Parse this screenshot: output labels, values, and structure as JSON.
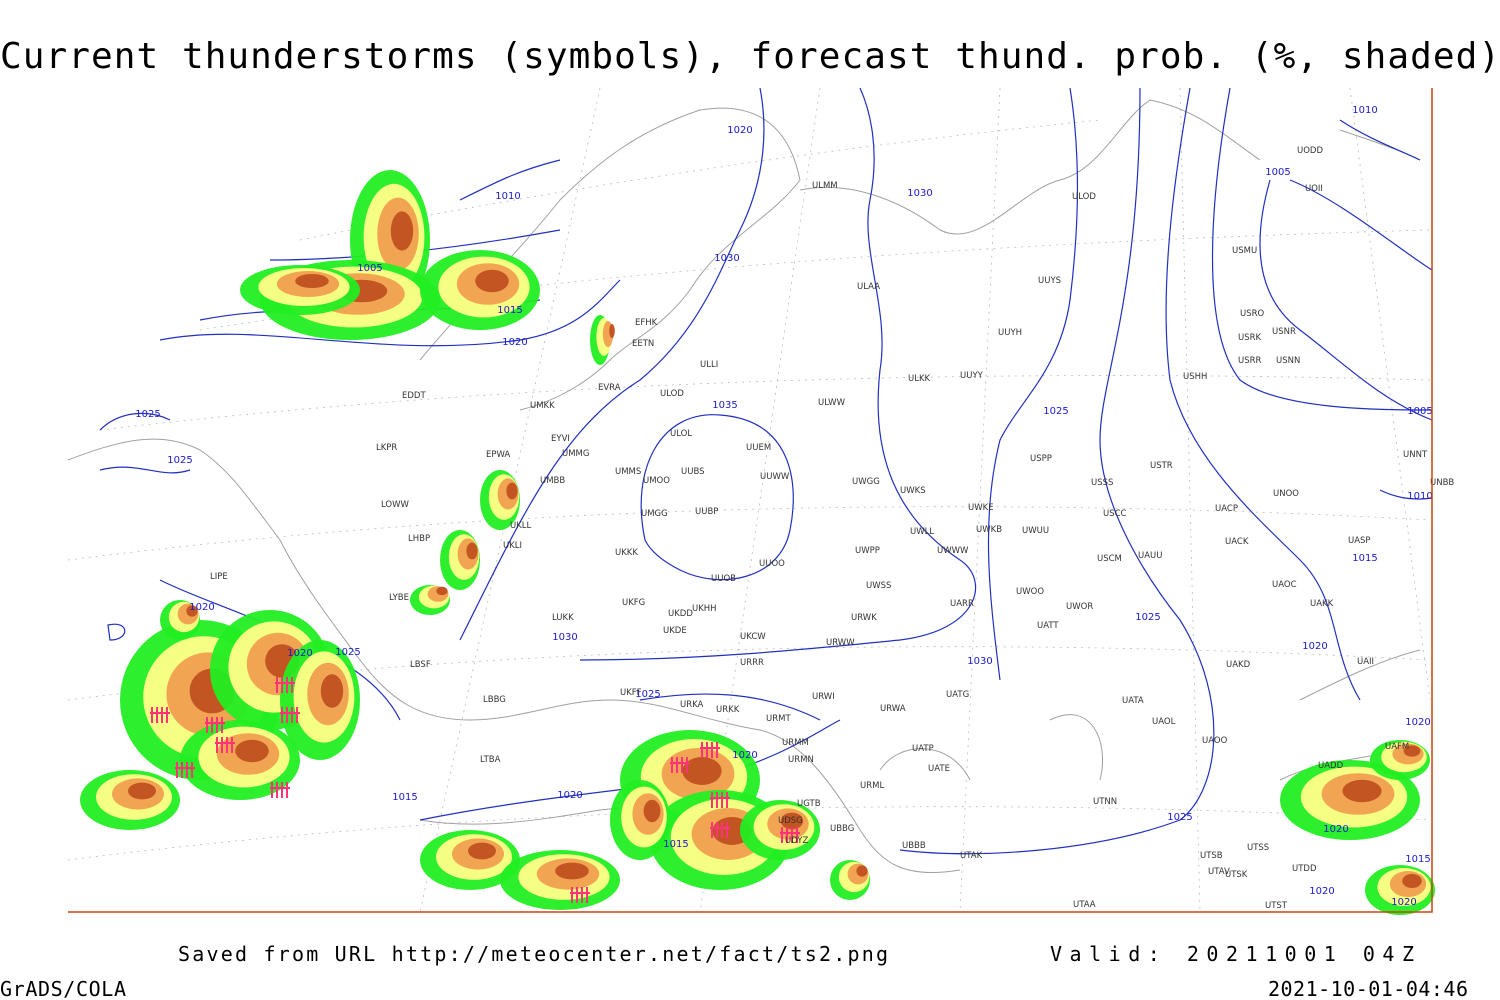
{
  "header": {
    "title": "Current thunderstorms (symbols), forecast thund. prob. (%, shaded)"
  },
  "isobar_labels": [
    "1020",
    "1010",
    "1030",
    "1010",
    "1005",
    "1030",
    "1005",
    "1015",
    "1020",
    "1025",
    "1035",
    "1025",
    "1005",
    "1025",
    "1010",
    "1015",
    "1020",
    "1025",
    "1030",
    "1020",
    "1025",
    "1020",
    "1030",
    "1025",
    "1020",
    "1020",
    "1020",
    "1015",
    "1025",
    "1020",
    "1015",
    "1015",
    "1020",
    "1020"
  ],
  "stations": [
    "ULMM",
    "ULOD",
    "UUYS",
    "ULAA",
    "UUYH",
    "ULKK",
    "UUYY",
    "EFHK",
    "EETN",
    "ULLI",
    "EVRA",
    "ULOD",
    "EDDT",
    "UMKK",
    "ULWW",
    "ULOL",
    "EYVI",
    "UUEM",
    "LKPR",
    "EPWA",
    "UMMG",
    "UMMS",
    "UUBS",
    "UMOO",
    "UUWW",
    "UMBB",
    "UWGG",
    "UWKS",
    "UWKE",
    "UWKB",
    "UWUU",
    "USPP",
    "USSS",
    "USCC",
    "USTR",
    "UNOO",
    "UNNT",
    "UNBB",
    "UACP",
    "LOWW",
    "UMGG",
    "UUBP",
    "UWLL",
    "UWWW",
    "LHBP",
    "UKLL",
    "UKLI",
    "UKKK",
    "UWPP",
    "USCM",
    "UAUU",
    "UACK",
    "UASP",
    "UUOB",
    "UUOO",
    "LIPE",
    "LYBE",
    "UWSS",
    "UWOO",
    "UWOR",
    "UAOC",
    "UAKK",
    "UKHH",
    "UKFG",
    "UKDD",
    "LUKK",
    "UARR",
    "UATT",
    "UKDE",
    "UKCW",
    "URWW",
    "URWK",
    "LBSF",
    "URRR",
    "UAKD",
    "UAII",
    "LBBG",
    "UKFF",
    "URKA",
    "URKK",
    "URWI",
    "UATG",
    "URWA",
    "UATA",
    "URMT",
    "UAOL",
    "UAOO",
    "URMM",
    "UATP",
    "URMN",
    "LTBA",
    "UATE",
    "UAFM",
    "UADD",
    "URML",
    "UTNN",
    "UGTB",
    "UDSG",
    "UBBG",
    "UBBB",
    "UTAK",
    "UTSS",
    "UTSB",
    "UTAV",
    "UTSK",
    "UTDD",
    "UTAA",
    "UTST",
    "UODD",
    "UOII",
    "USMU",
    "USRO",
    "USRK",
    "USNR",
    "USRR",
    "USNN",
    "USHH",
    "UDYZ"
  ],
  "footer": {
    "source": "Saved from URL http://meteocenter.net/fact/ts2.png",
    "valid": "Valid: 20211001 04Z",
    "software": "GrADS/COLA",
    "timestamp": "2021-10-01-04:46"
  }
}
